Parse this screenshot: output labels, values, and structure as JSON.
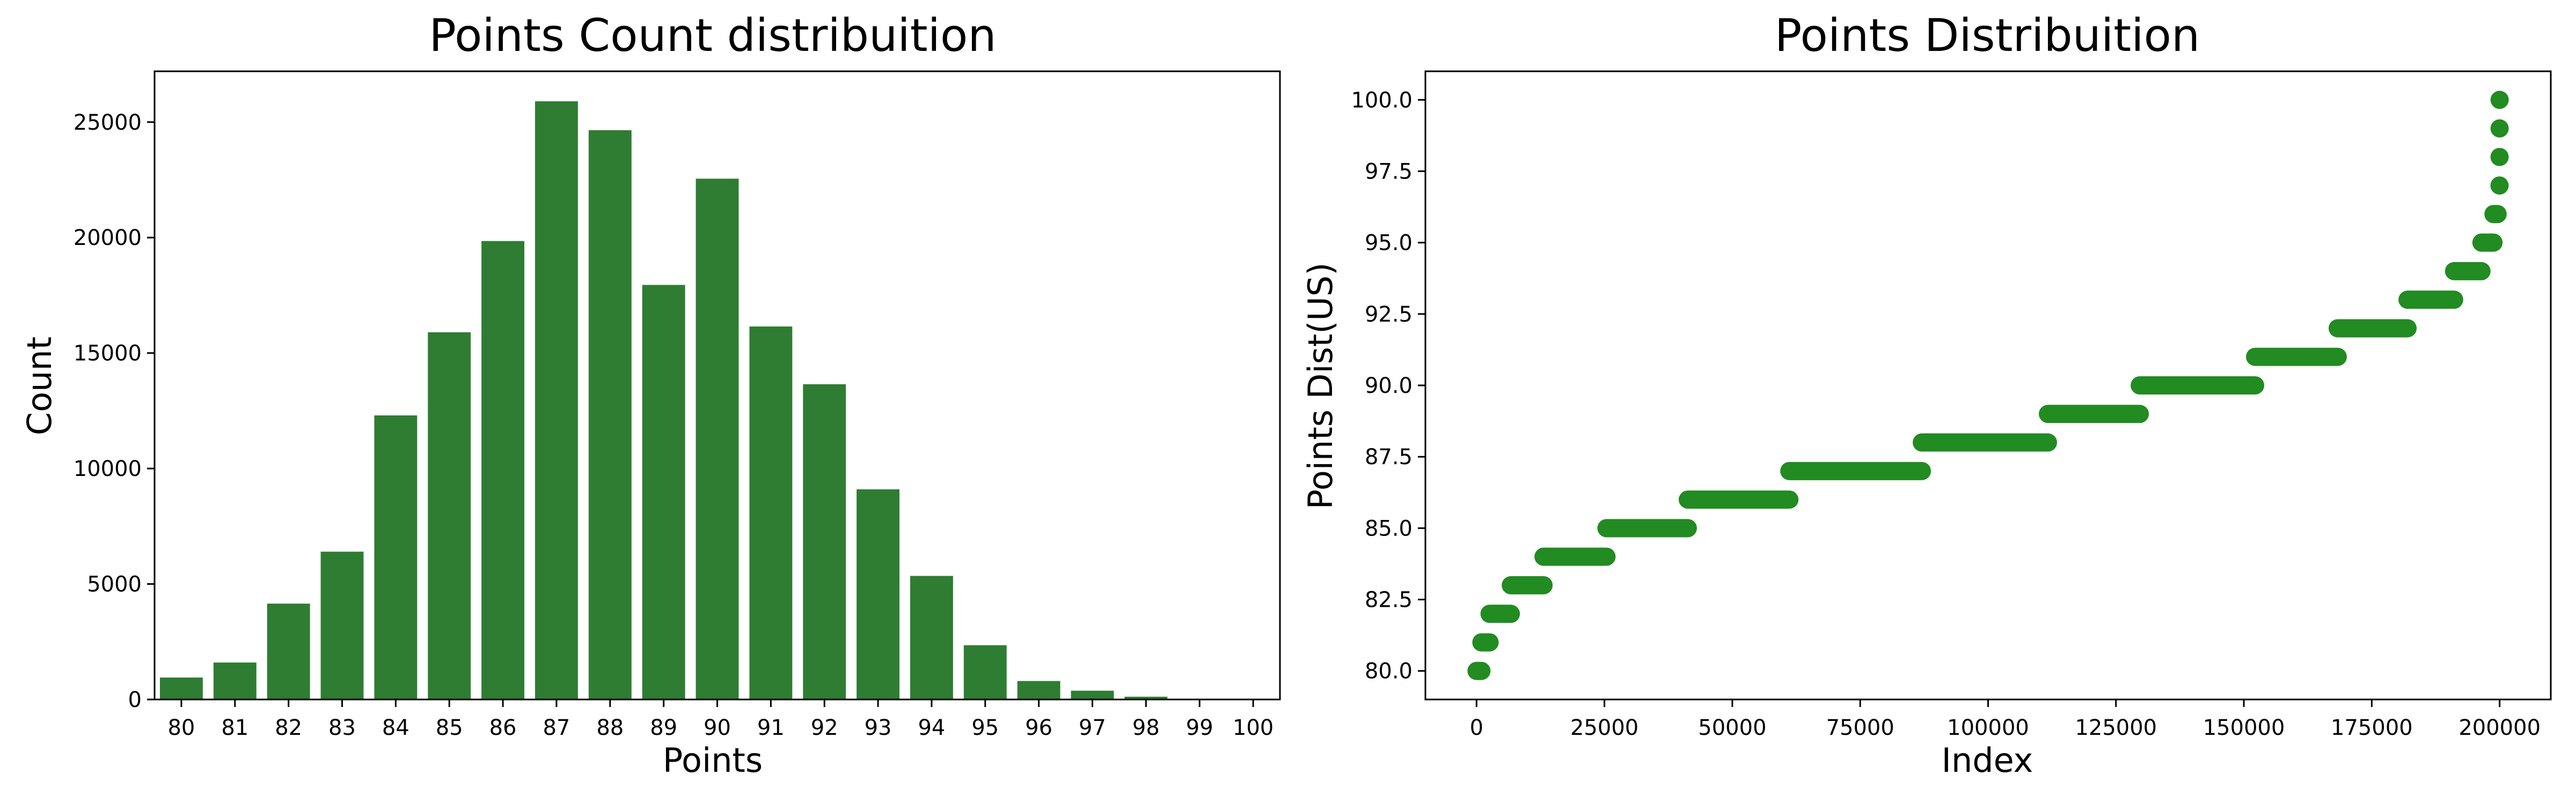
{
  "chart_data": [
    {
      "type": "bar",
      "title": "Points Count distribuition",
      "xlabel": "Points",
      "ylabel": "Count",
      "categories": [
        "80",
        "81",
        "82",
        "83",
        "84",
        "85",
        "86",
        "87",
        "88",
        "89",
        "90",
        "91",
        "92",
        "93",
        "94",
        "95",
        "96",
        "97",
        "98",
        "99",
        "100"
      ],
      "values": [
        950,
        1600,
        4150,
        6400,
        12300,
        15900,
        19850,
        25900,
        24650,
        17950,
        22550,
        16150,
        13650,
        9100,
        5350,
        2350,
        800,
        380,
        120,
        30,
        10
      ],
      "yticks": [
        0,
        5000,
        10000,
        15000,
        20000,
        25000
      ],
      "ylim": [
        0,
        27200
      ],
      "grid": false,
      "bar_color": "#2e7d32"
    },
    {
      "type": "scatter",
      "title": "Points Distribuition",
      "xlabel": "Index",
      "ylabel": "Points Dist(US)",
      "xticks": [
        0,
        25000,
        50000,
        75000,
        100000,
        125000,
        150000,
        175000,
        200000
      ],
      "yticks": [
        80.0,
        82.5,
        85.0,
        87.5,
        90.0,
        92.5,
        95.0,
        97.5,
        100.0
      ],
      "xlim": [
        -10000,
        210000
      ],
      "ylim": [
        79,
        101
      ],
      "grid": false,
      "point_color": "#228b22",
      "series": [
        {
          "y": 80,
          "x_start": 0,
          "x_end": 950
        },
        {
          "y": 81,
          "x_start": 950,
          "x_end": 2550
        },
        {
          "y": 82,
          "x_start": 2550,
          "x_end": 6700
        },
        {
          "y": 83,
          "x_start": 6700,
          "x_end": 13100
        },
        {
          "y": 84,
          "x_start": 13100,
          "x_end": 25400
        },
        {
          "y": 85,
          "x_start": 25400,
          "x_end": 41300
        },
        {
          "y": 86,
          "x_start": 41300,
          "x_end": 61150
        },
        {
          "y": 87,
          "x_start": 61150,
          "x_end": 87050
        },
        {
          "y": 88,
          "x_start": 87050,
          "x_end": 111700
        },
        {
          "y": 89,
          "x_start": 111700,
          "x_end": 129650
        },
        {
          "y": 90,
          "x_start": 129650,
          "x_end": 152200
        },
        {
          "y": 91,
          "x_start": 152200,
          "x_end": 168350
        },
        {
          "y": 92,
          "x_start": 168350,
          "x_end": 182000
        },
        {
          "y": 93,
          "x_start": 182000,
          "x_end": 191100
        },
        {
          "y": 94,
          "x_start": 191100,
          "x_end": 196450
        },
        {
          "y": 95,
          "x_start": 196450,
          "x_end": 198800
        },
        {
          "y": 96,
          "x_start": 198800,
          "x_end": 199600
        },
        {
          "y": 97,
          "x_start": 199980,
          "x_end": 199980
        },
        {
          "y": 98,
          "x_start": 199990,
          "x_end": 199990
        },
        {
          "y": 99,
          "x_start": 199995,
          "x_end": 199995
        },
        {
          "y": 100,
          "x_start": 200000,
          "x_end": 200000
        }
      ]
    }
  ]
}
